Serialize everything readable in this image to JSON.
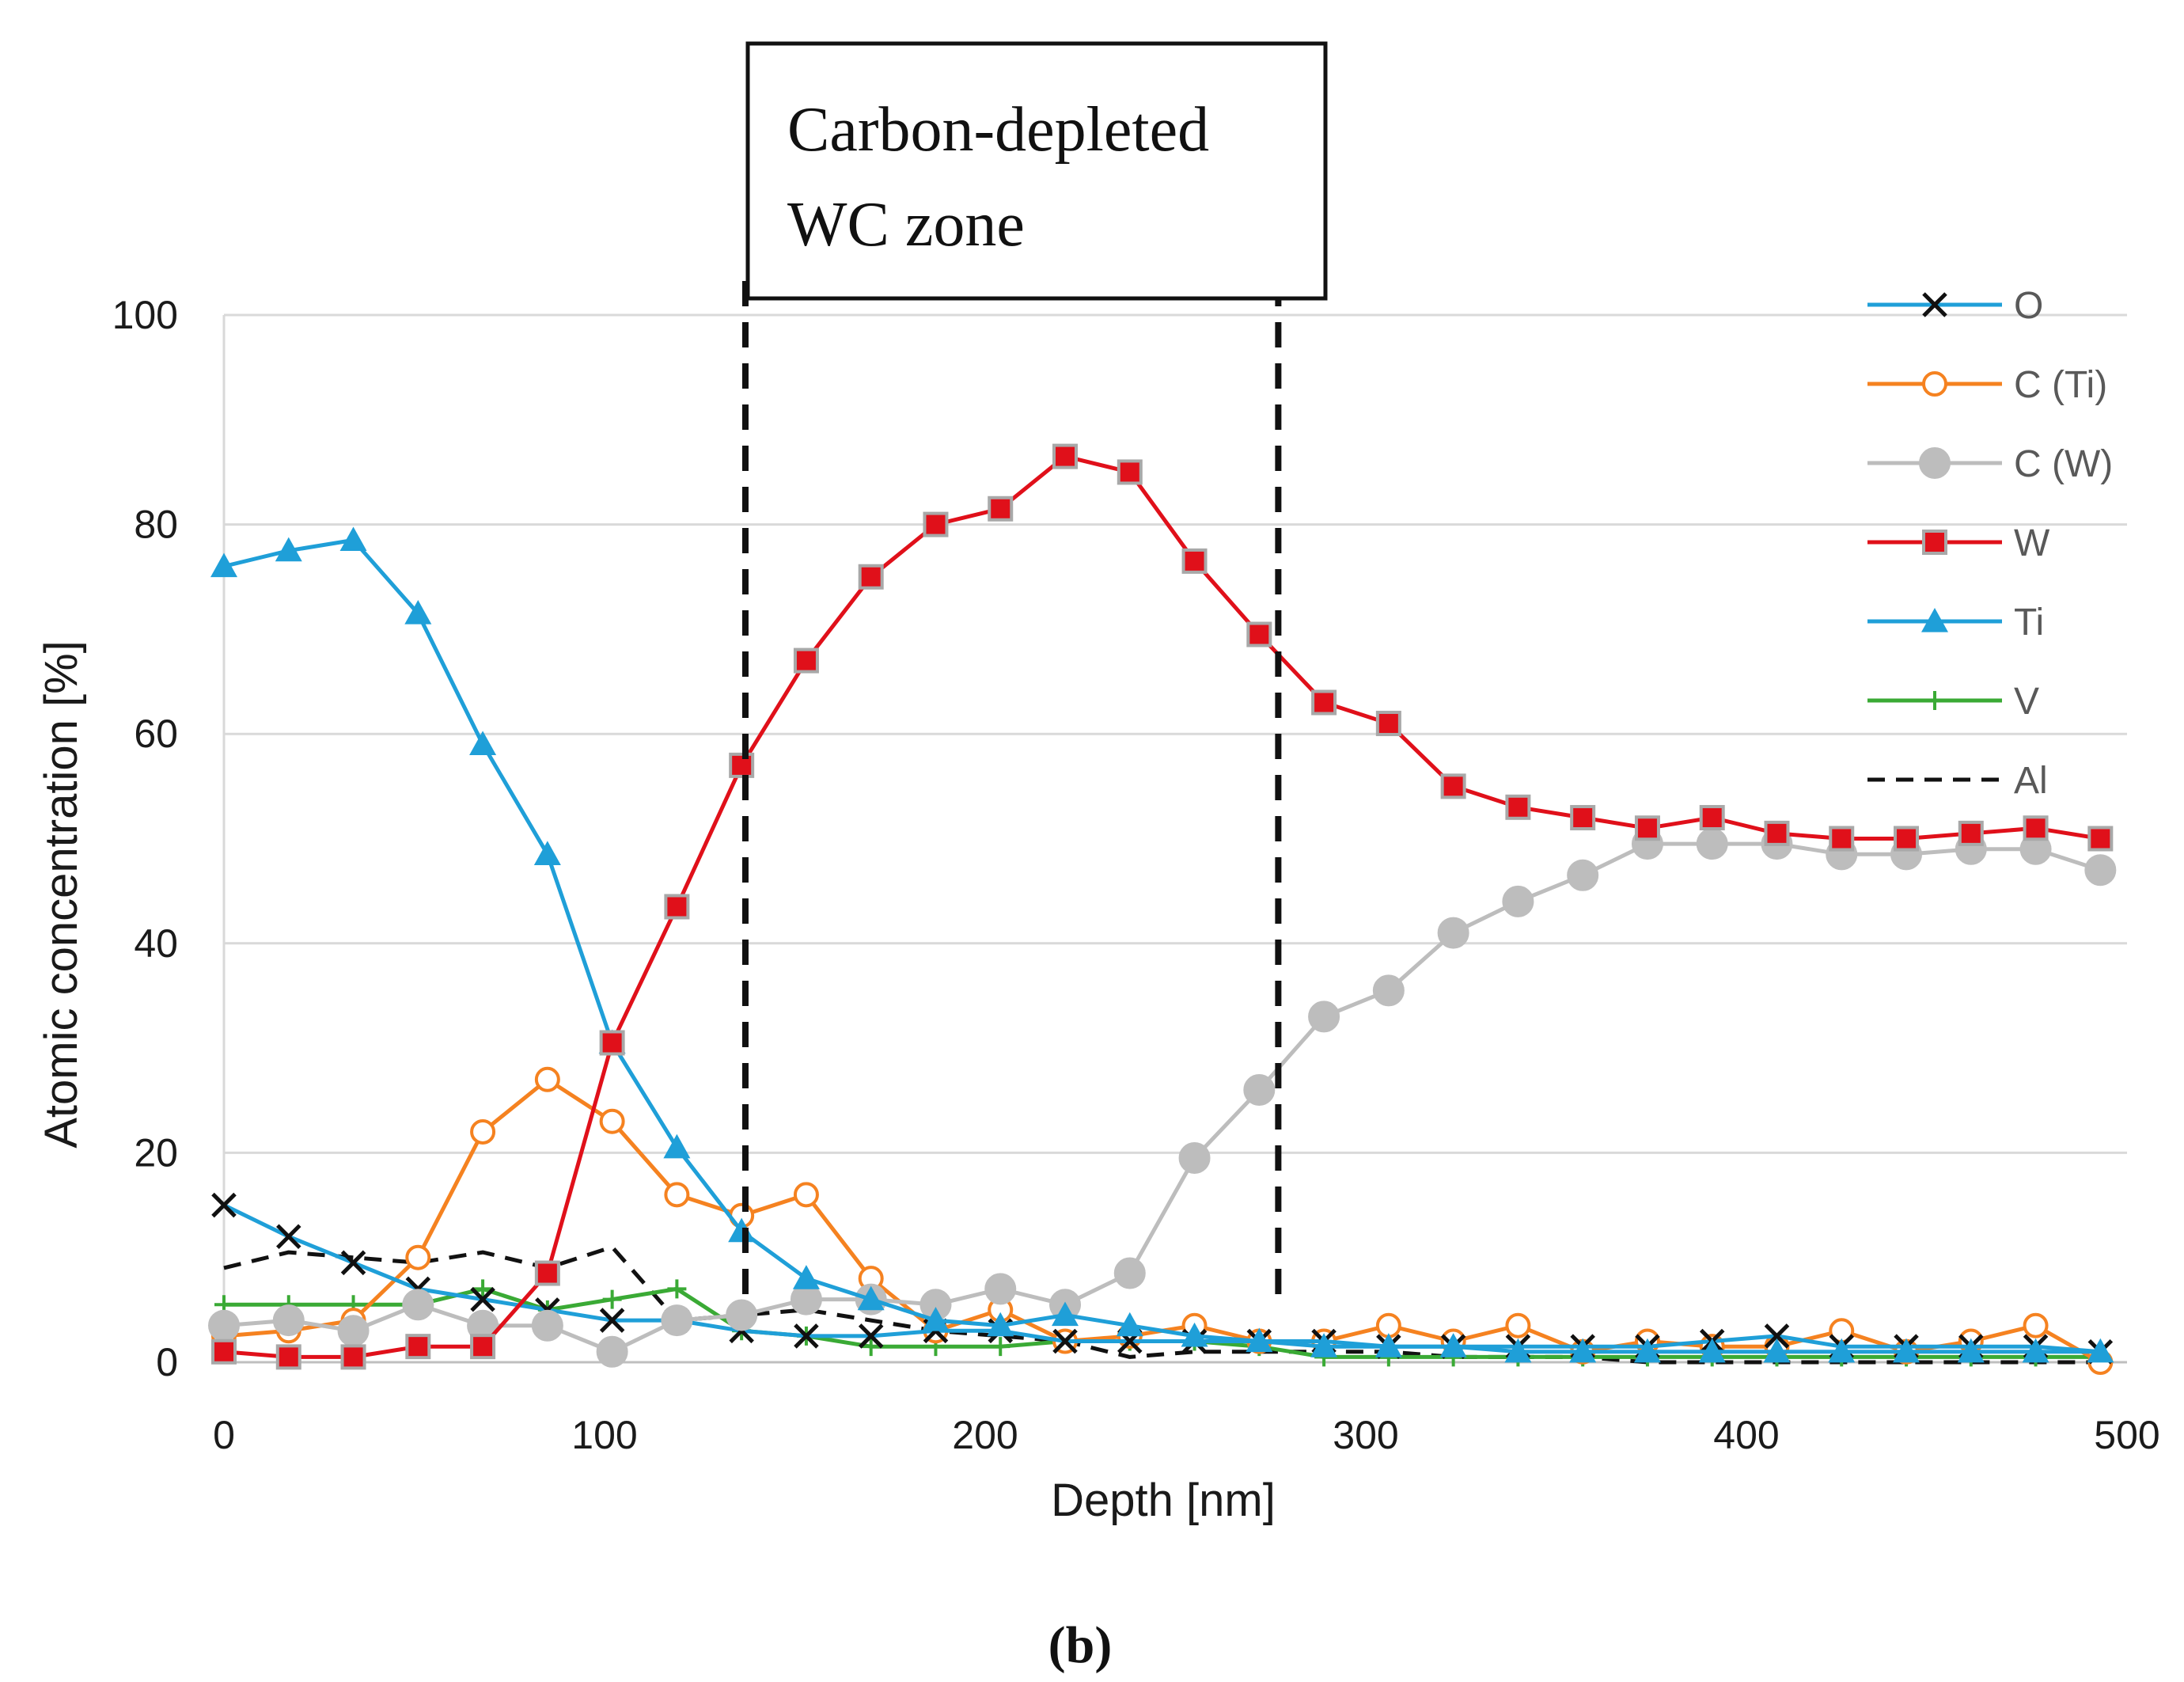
{
  "chart_data": {
    "type": "line",
    "xlabel": "Depth [nm]",
    "ylabel": "Atomic concentration [%]",
    "xlim": [
      0,
      500
    ],
    "ylim": [
      0,
      100
    ],
    "xticks": [
      "0",
      "100",
      "200",
      "300",
      "400",
      "500"
    ],
    "yticks": [
      "0",
      "20",
      "40",
      "60",
      "80",
      "100"
    ],
    "grid": "horizontal",
    "legend_position": "right",
    "x": [
      0,
      17,
      34,
      51,
      68,
      85,
      102,
      119,
      136,
      153,
      170,
      187,
      204,
      221,
      238,
      255,
      272,
      289,
      306,
      323,
      340,
      357,
      374,
      391,
      408,
      425,
      442,
      459,
      476,
      493
    ],
    "series": [
      {
        "name": "O",
        "color": "#1f9fd8",
        "marker": "x",
        "markerColor": "#111111",
        "values": [
          15,
          12,
          9.5,
          7,
          6,
          5,
          4,
          4,
          3,
          2.5,
          2.5,
          3,
          3,
          2,
          2,
          2,
          2,
          2,
          1.5,
          1.5,
          1.5,
          1.5,
          1.5,
          2,
          2.5,
          1.5,
          1.5,
          1.5,
          1.5,
          1
        ]
      },
      {
        "name": "C (Ti)",
        "color": "#f58220",
        "marker": "circle-open",
        "values": [
          2.5,
          3,
          4,
          10,
          22,
          27,
          23,
          16,
          14,
          16,
          8,
          3,
          5,
          2,
          2.5,
          3.5,
          2,
          2,
          3.5,
          2,
          3.5,
          1,
          2,
          1.5,
          1.5,
          3,
          1,
          2,
          3.5,
          0
        ]
      },
      {
        "name": "C (W)",
        "color": "#bdbdbd",
        "marker": "circle",
        "values": [
          3.5,
          4,
          3,
          5.5,
          3.5,
          3.5,
          1,
          4,
          4.5,
          6,
          6,
          5.5,
          7,
          5.5,
          8.5,
          19.5,
          26,
          33,
          35.5,
          41,
          44,
          46.5,
          49.5,
          49.5,
          49.5,
          48.5,
          48.5,
          49,
          49,
          47
        ]
      },
      {
        "name": "W",
        "color": "#e0101a",
        "marker": "square",
        "markerColor": "#e0101a",
        "markerStroke": "#a8a8a8",
        "values": [
          1,
          0.5,
          0.5,
          1.5,
          1.5,
          8.5,
          30.5,
          43.5,
          57,
          67,
          75,
          80,
          81.5,
          86.5,
          85,
          76.5,
          69.5,
          63,
          61,
          55,
          53,
          52,
          51,
          52,
          50.5,
          50,
          50,
          50.5,
          51,
          50
        ]
      },
      {
        "name": "Ti",
        "color": "#1f9fd8",
        "marker": "triangle",
        "values": [
          76,
          77.5,
          78.5,
          71.5,
          59,
          48.5,
          30.5,
          20.5,
          12.5,
          8,
          6,
          4,
          3.5,
          4.5,
          3.5,
          2.5,
          2,
          1.5,
          1.5,
          1.5,
          1,
          1,
          1,
          1,
          1,
          1,
          1,
          1,
          1,
          1
        ]
      },
      {
        "name": "V",
        "color": "#3aaa35",
        "marker": "plus",
        "values": [
          5.5,
          5.5,
          5.5,
          5.5,
          7,
          5,
          6,
          7,
          3,
          2.5,
          1.5,
          1.5,
          1.5,
          2,
          2,
          2,
          1.5,
          0.5,
          0.5,
          0.5,
          0.5,
          0.5,
          0.5,
          0.5,
          0.5,
          0.5,
          0.5,
          0.5,
          0.5,
          0.5
        ]
      },
      {
        "name": "Al",
        "color": "#111111",
        "marker": "none",
        "dash": true,
        "values": [
          9,
          10.5,
          10,
          9.5,
          10.5,
          9,
          11,
          4,
          4.5,
          5,
          4,
          3,
          2.5,
          2,
          0.5,
          1,
          1,
          1,
          1,
          0.5,
          0.5,
          0.5,
          0,
          0,
          0,
          0,
          0,
          0,
          0,
          0
        ]
      }
    ],
    "vlines": [
      137,
      277
    ],
    "annotation": {
      "line1": "Carbon-depleted",
      "line2": "WC zone"
    },
    "panel_label": "(b)"
  }
}
